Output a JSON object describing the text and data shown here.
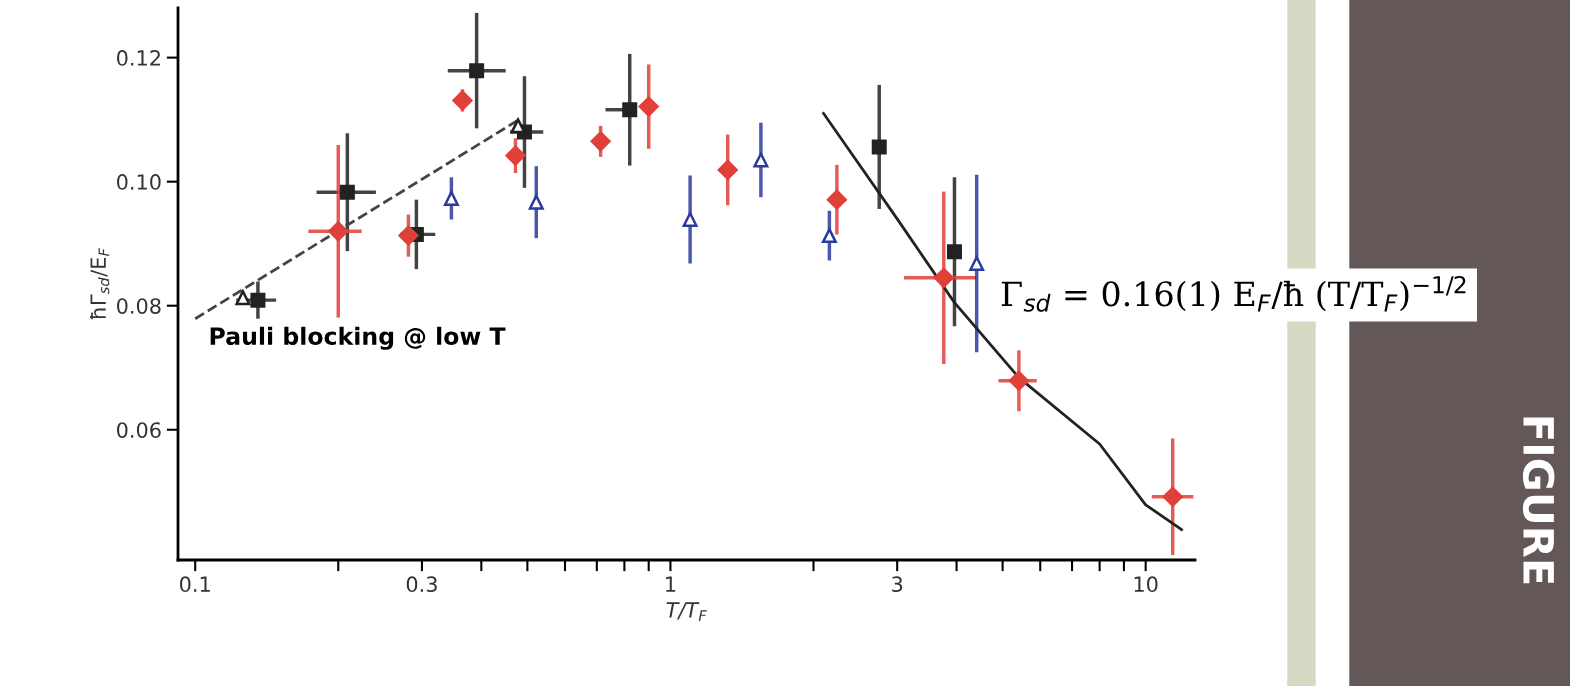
{
  "chart_data": {
    "type": "scatter",
    "xlabel": "T/T$_{F}$",
    "ylabel": "ħΓ$_{sd}$/E$_{F}$",
    "log": "x",
    "xlim": [
      0.092,
      12.7
    ],
    "ylim": [
      0.039,
      0.128
    ],
    "xticks": [
      0.1,
      {
        "value": 0.2,
        "label": null
      },
      0.3,
      {
        "value": 0.4,
        "label": null
      },
      {
        "value": 0.5,
        "label": null
      },
      {
        "value": 0.6,
        "label": null
      },
      {
        "value": 0.7,
        "label": null
      },
      {
        "value": 0.8,
        "label": null
      },
      {
        "value": 0.9,
        "label": null
      },
      1,
      {
        "value": 2,
        "label": null
      },
      3,
      {
        "value": 4,
        "label": null
      },
      {
        "value": 5,
        "label": null
      },
      {
        "value": 6,
        "label": null
      },
      {
        "value": 7,
        "label": null
      },
      {
        "value": 8,
        "label": null
      },
      {
        "value": 9,
        "label": null
      },
      10
    ],
    "yticks": [
      0.06,
      0.08,
      {
        "value": 0.1,
        "label": "0.10"
      },
      0.12
    ],
    "grid": false,
    "legend": false,
    "series": [
      {
        "color": "#222222",
        "marker": "square",
        "x": [
          0.1355,
          0.209,
          0.292,
          0.391,
          0.493,
          0.821,
          2.75,
          3.96
        ],
        "values": [
          0.0809,
          0.0983,
          0.0915,
          0.1179,
          0.108,
          0.1116,
          0.1056,
          0.0887
        ],
        "errors": [
          0.003,
          0.0095,
          0.0056,
          0.0093,
          0.009,
          0.009,
          0.01,
          0.012
        ],
        "xerrors": [
          [
            0.122,
            0.148
          ],
          [
            0.18,
            0.24
          ],
          [
            0.27,
            0.32
          ],
          [
            0.34,
            0.45
          ],
          [
            0.46,
            0.54
          ],
          [
            0.73,
            0.85
          ],
          null,
          null
        ]
      },
      {
        "color": "#e0403a",
        "marker": "diamond",
        "x": [
          0.2,
          0.281,
          0.365,
          0.472,
          0.713,
          0.9,
          1.32,
          2.24,
          3.76,
          5.41,
          11.4
        ],
        "values": [
          0.092,
          0.0913,
          0.1131,
          0.1042,
          0.1065,
          0.1121,
          0.1019,
          0.0971,
          0.0845,
          0.0679,
          0.0492
        ],
        "errors": [
          0.0139,
          0.0034,
          0.0018,
          0.0028,
          0.0025,
          0.0068,
          0.0057,
          0.0056,
          0.0139,
          0.0049,
          0.0094
        ],
        "xerrors": [
          [
            0.173,
            0.224
          ],
          null,
          null,
          null,
          null,
          null,
          null,
          null,
          [
            3.1,
            4.4
          ],
          [
            4.9,
            5.9
          ],
          [
            10.3,
            12.6
          ]
        ]
      },
      {
        "color": "#2b3a9c",
        "marker": "triangle",
        "x": [
          0.346,
          0.522,
          1.1,
          1.55,
          2.16,
          4.41
        ],
        "values": [
          0.0973,
          0.0967,
          0.0939,
          0.1035,
          0.0913,
          0.0868
        ],
        "errors": [
          0.0034,
          0.0058,
          0.0071,
          0.006,
          0.004,
          0.0143
        ]
      },
      {
        "color": "#222222",
        "marker": "triangle",
        "x": [
          0.126,
          0.478
        ],
        "values": [
          0.0813,
          0.109
        ]
      },
      {
        "type": "line",
        "color": "#444444",
        "line_style": "dashed",
        "marker": "none",
        "x": [
          0.1,
          0.48
        ],
        "values": [
          0.0779,
          0.11
        ]
      },
      {
        "type": "line",
        "color": "#222222",
        "line_style": "solid",
        "marker": "none",
        "x": [
          2.1,
          3,
          3.96,
          5.41,
          8,
          10,
          11.9
        ],
        "values": [
          0.111,
          0.094,
          0.0805,
          0.0684,
          0.0577,
          0.0479,
          0.0439
        ]
      }
    ],
    "annotations": [
      "Pauli blocking @ low T",
      "Γ$_{sd}$ = 0.16(1) E$_{F}$/ħ (T/T$_{F}$)$^{−1/2}$",
      "FIGURE"
    ]
  }
}
